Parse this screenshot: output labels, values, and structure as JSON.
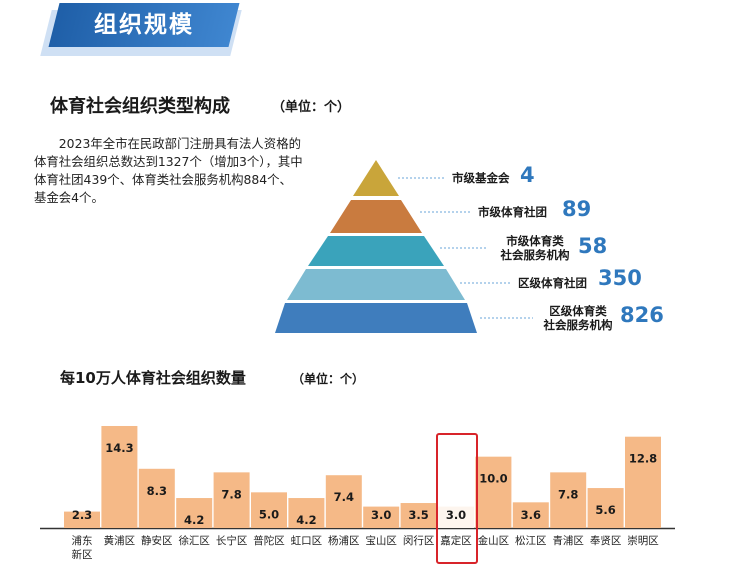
{
  "banner": {
    "title": "组织规模"
  },
  "section1": {
    "title": "体育社会组织类型构成",
    "unit": "（单位：个）",
    "paragraph": "2023年全市在民政部门注册具有法人资格的体育社会组织总数达到1327个（增加3个），其中体育社团439个、体育类社会服务机构884个、基金会4个。"
  },
  "pyramid": {
    "levels": [
      {
        "label": "市级基金会",
        "value": "4",
        "color": "#c9a53a"
      },
      {
        "label": "市级体育社团",
        "value": "89",
        "color": "#c97b3f"
      },
      {
        "label": "市级体育类社会服务机构",
        "value": "58",
        "color": "#3aa3bb"
      },
      {
        "label": "区级体育社团",
        "value": "350",
        "color": "#7dbbd1"
      },
      {
        "label": "区级体育类社会服务机构",
        "value": "826",
        "color": "#3f7dbd"
      }
    ]
  },
  "section2": {
    "title": "每10万人体育社会组织数量",
    "unit": "（单位：个）"
  },
  "chart_data": {
    "type": "bar",
    "categories": [
      "浦东新区",
      "黄浦区",
      "静安区",
      "徐汇区",
      "长宁区",
      "普陀区",
      "虹口区",
      "杨浦区",
      "宝山区",
      "闵行区",
      "嘉定区",
      "金山区",
      "松江区",
      "青浦区",
      "奉贤区",
      "崇明区"
    ],
    "values": [
      2.3,
      14.3,
      8.3,
      4.2,
      7.8,
      5.0,
      4.2,
      7.4,
      3.0,
      3.5,
      3.0,
      10.0,
      3.6,
      7.8,
      5.6,
      12.8
    ],
    "value_labels": [
      "2.3",
      "14.3",
      "8.3",
      "4.2",
      "7.8",
      "5.0",
      "4.2",
      "7.4",
      "3.0",
      "3.5",
      "3.0",
      "10.0",
      "3.6",
      "7.8",
      "5.6",
      "12.8"
    ],
    "highlight": "嘉定区",
    "highlight_color": "#d8242a",
    "bar_color": "#f5b987",
    "highlight_bar_color": "#fdf5ee",
    "ylim": [
      0,
      15
    ],
    "grid": false
  }
}
